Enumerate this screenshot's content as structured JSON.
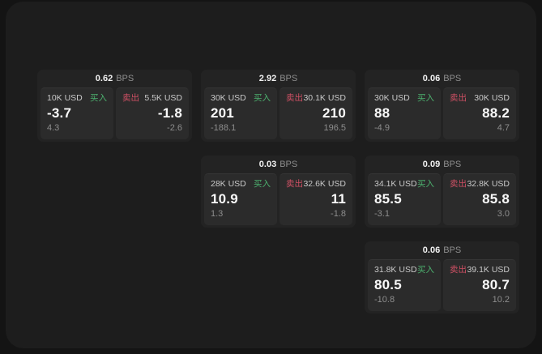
{
  "labels": {
    "bps_unit": "BPS",
    "buy": "买入",
    "sell": "卖出"
  },
  "colors": {
    "buy": "#4cb06e",
    "sell": "#cf5064",
    "page_background": "#141414",
    "panel_background": "#1d1d1d",
    "card_background": "#232323",
    "tile_background": "#2b2b2b"
  },
  "cards": [
    {
      "col": 1,
      "row": 1,
      "bps": "0.62",
      "buy": {
        "amount": "10K USD",
        "value": "-3.7",
        "delta": "4.3"
      },
      "sell": {
        "amount": "5.5K USD",
        "value": "-1.8",
        "delta": "-2.6"
      }
    },
    {
      "col": 2,
      "row": 1,
      "bps": "2.92",
      "buy": {
        "amount": "30K USD",
        "value": "201",
        "delta": "-188.1"
      },
      "sell": {
        "amount": "30.1K USD",
        "value": "210",
        "delta": "196.5"
      }
    },
    {
      "col": 3,
      "row": 1,
      "bps": "0.06",
      "buy": {
        "amount": "30K USD",
        "value": "88",
        "delta": "-4.9"
      },
      "sell": {
        "amount": "30K USD",
        "value": "88.2",
        "delta": "4.7"
      }
    },
    {
      "col": 2,
      "row": 2,
      "bps": "0.03",
      "buy": {
        "amount": "28K USD",
        "value": "10.9",
        "delta": "1.3"
      },
      "sell": {
        "amount": "32.6K USD",
        "value": "11",
        "delta": "-1.8"
      }
    },
    {
      "col": 3,
      "row": 2,
      "bps": "0.09",
      "buy": {
        "amount": "34.1K USD",
        "value": "85.5",
        "delta": "-3.1"
      },
      "sell": {
        "amount": "32.8K USD",
        "value": "85.8",
        "delta": "3.0"
      }
    },
    {
      "col": 3,
      "row": 3,
      "bps": "0.06",
      "buy": {
        "amount": "31.8K USD",
        "value": "80.5",
        "delta": "-10.8"
      },
      "sell": {
        "amount": "39.1K USD",
        "value": "80.7",
        "delta": "10.2"
      }
    }
  ]
}
